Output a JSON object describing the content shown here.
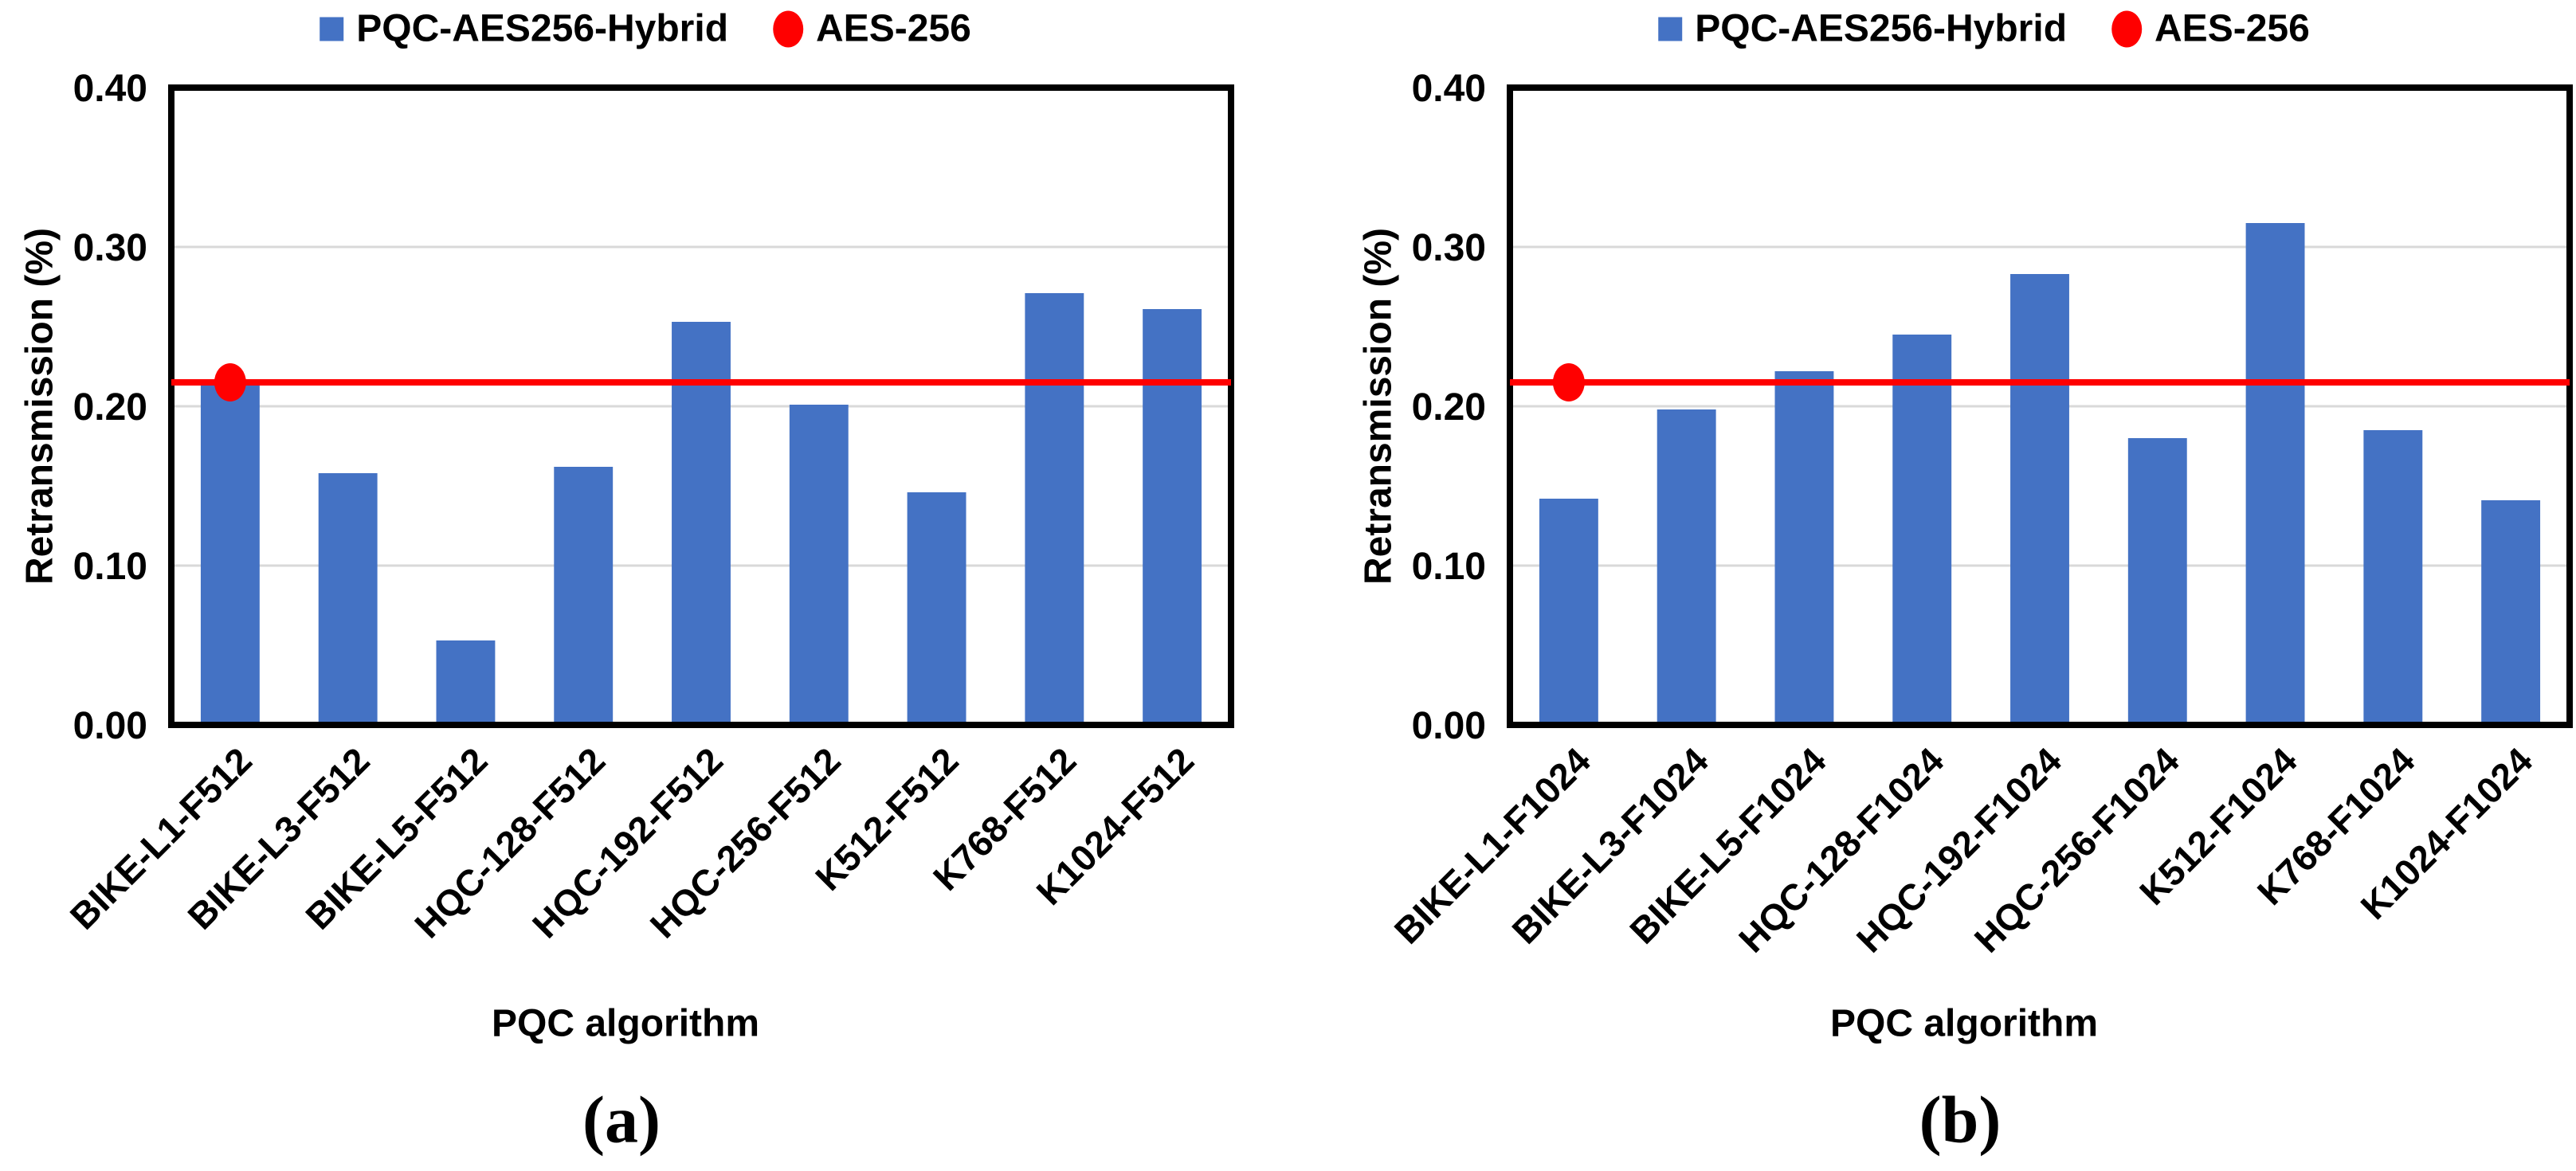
{
  "figure": {
    "legend": {
      "series1": "PQC-AES256-Hybrid",
      "series2": "AES-256"
    },
    "colors": {
      "bar": "#4472C4",
      "line": "#FF0000",
      "grid": "#D9D9D9",
      "axis": "#000000"
    }
  },
  "chart_data": [
    {
      "type": "bar",
      "panel": "a",
      "caption": "(a)",
      "xlabel": "PQC algorithm",
      "ylabel": "Retransmission (%)",
      "categories": [
        "BIKE-L1-F512",
        "BIKE-L3-F512",
        "BIKE-L5-F512",
        "HQC-128-F512",
        "HQC-192-F512",
        "HQC-256-F512",
        "K512-F512",
        "K768-F512",
        "K1024-F512"
      ],
      "series": [
        {
          "name": "PQC-AES256-Hybrid",
          "type": "bar",
          "values": [
            0.217,
            0.158,
            0.053,
            0.162,
            0.253,
            0.201,
            0.146,
            0.271,
            0.261
          ]
        },
        {
          "name": "AES-256",
          "type": "reference-line",
          "value": 0.215,
          "marker_category_index": 0
        }
      ],
      "ylim": [
        0,
        0.4
      ],
      "yticks": [
        0,
        0.1,
        0.2,
        0.3,
        0.4
      ],
      "ytick_labels": [
        "0.00",
        "0.10",
        "0.20",
        "0.30",
        "0.40"
      ],
      "grid": true,
      "legend_position": "top-center"
    },
    {
      "type": "bar",
      "panel": "b",
      "caption": "(b)",
      "xlabel": "PQC algorithm",
      "ylabel": "Retransmission (%)",
      "categories": [
        "BIKE-L1-F1024",
        "BIKE-L3-F1024",
        "BIKE-L5-F1024",
        "HQC-128-F1024",
        "HQC-192-F1024",
        "HQC-256-F1024",
        "K512-F1024",
        "K768-F1024",
        "K1024-F1024"
      ],
      "series": [
        {
          "name": "PQC-AES256-Hybrid",
          "type": "bar",
          "values": [
            0.142,
            0.198,
            0.222,
            0.245,
            0.283,
            0.18,
            0.315,
            0.185,
            0.141
          ]
        },
        {
          "name": "AES-256",
          "type": "reference-line",
          "value": 0.215,
          "marker_category_index": 0
        }
      ],
      "ylim": [
        0,
        0.4
      ],
      "yticks": [
        0,
        0.1,
        0.2,
        0.3,
        0.4
      ],
      "ytick_labels": [
        "0.00",
        "0.10",
        "0.20",
        "0.30",
        "0.40"
      ],
      "grid": true,
      "legend_position": "top-center"
    }
  ]
}
